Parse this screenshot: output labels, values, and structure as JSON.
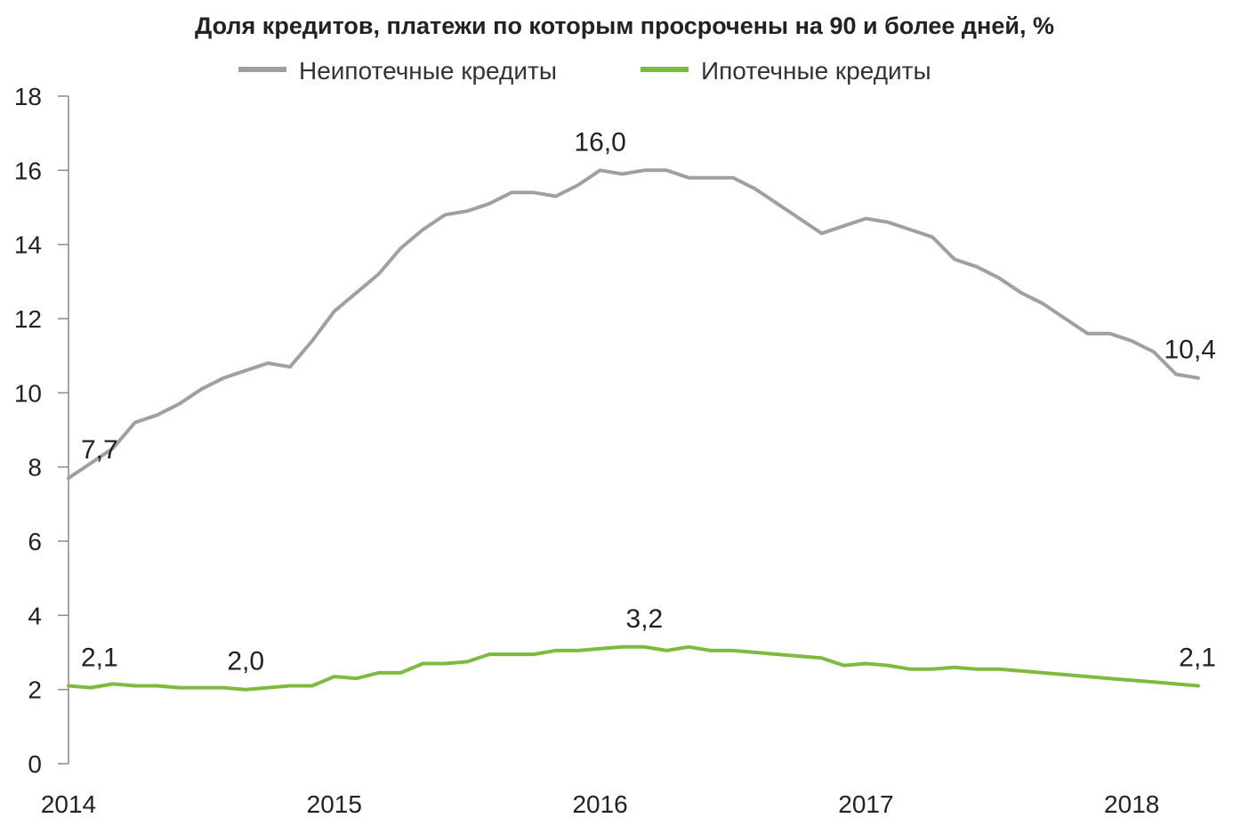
{
  "chart_data": {
    "type": "line",
    "title": "Доля кредитов, платежи по которым просрочены на 90 и более дней, %",
    "xlabel": "",
    "ylabel": "",
    "x_start": "2014-01",
    "x_step": "month",
    "x_ticks": [
      "2014",
      "2015",
      "2016",
      "2017",
      "2018"
    ],
    "y_ticks": [
      "0",
      "2",
      "4",
      "6",
      "8",
      "10",
      "12",
      "14",
      "16",
      "18"
    ],
    "ylim": [
      0,
      18
    ],
    "grid": false,
    "legend": "top-center",
    "series": [
      {
        "name": "Неипотечные кредиты",
        "color": "#a0a0a0",
        "values": [
          7.7,
          8.1,
          8.5,
          9.2,
          9.4,
          9.7,
          10.1,
          10.4,
          10.6,
          10.8,
          10.7,
          11.4,
          12.2,
          12.7,
          13.2,
          13.9,
          14.4,
          14.8,
          14.9,
          15.1,
          15.4,
          15.4,
          15.3,
          15.6,
          16.0,
          15.9,
          16.0,
          16.0,
          15.8,
          15.8,
          15.8,
          15.5,
          15.1,
          14.7,
          14.3,
          14.5,
          14.7,
          14.6,
          14.4,
          14.2,
          13.6,
          13.4,
          13.1,
          12.7,
          12.4,
          12.0,
          11.6,
          11.6,
          11.4,
          11.1,
          10.5,
          10.4
        ]
      },
      {
        "name": "Ипотечные кредиты",
        "color": "#7cbb3e",
        "values": [
          2.1,
          2.05,
          2.15,
          2.1,
          2.1,
          2.05,
          2.05,
          2.05,
          2.0,
          2.05,
          2.1,
          2.1,
          2.35,
          2.3,
          2.45,
          2.45,
          2.7,
          2.7,
          2.75,
          2.95,
          2.95,
          2.95,
          3.05,
          3.05,
          3.1,
          3.15,
          3.15,
          3.05,
          3.15,
          3.05,
          3.05,
          3.0,
          2.95,
          2.9,
          2.85,
          2.65,
          2.7,
          2.65,
          2.55,
          2.55,
          2.6,
          2.55,
          2.55,
          2.5,
          2.45,
          2.4,
          2.35,
          2.3,
          2.25,
          2.2,
          2.15,
          2.1
        ]
      }
    ],
    "annotations": [
      {
        "series": 0,
        "index": 0,
        "text": "7,7"
      },
      {
        "series": 0,
        "index": 24,
        "text": "16,0"
      },
      {
        "series": 0,
        "index": 51,
        "text": "10,4"
      },
      {
        "series": 1,
        "index": 0,
        "text": "2,1"
      },
      {
        "series": 1,
        "index": 8,
        "text": "2,0"
      },
      {
        "series": 1,
        "index": 26,
        "text": "3,2"
      },
      {
        "series": 1,
        "index": 51,
        "text": "2,1"
      }
    ]
  }
}
